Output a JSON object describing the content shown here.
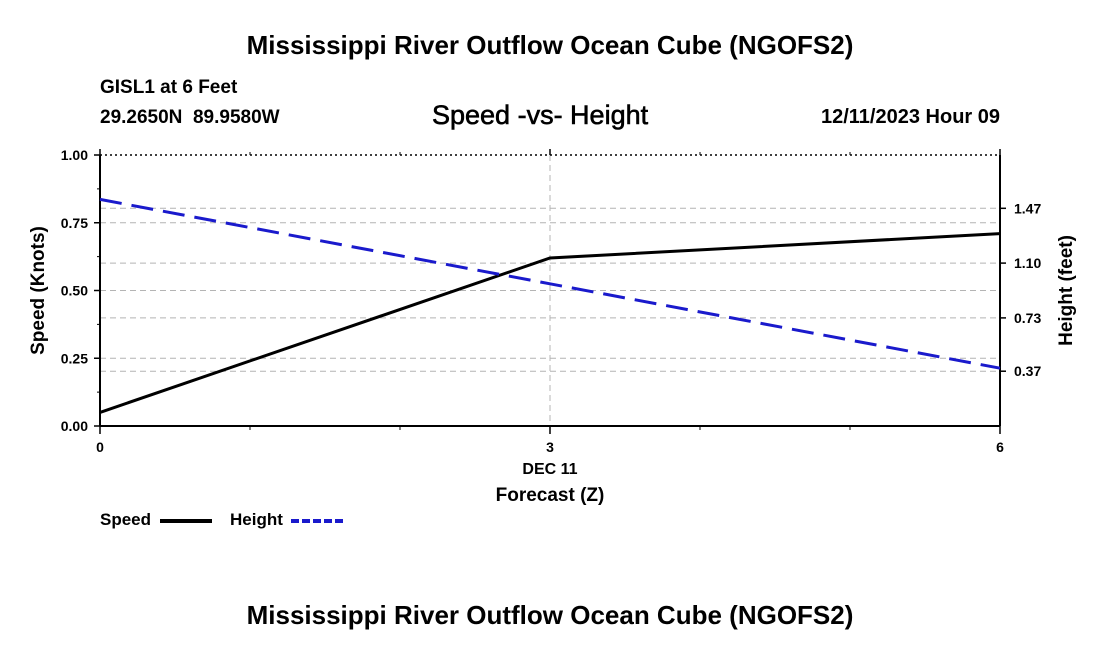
{
  "header": {
    "title": "Mississippi River Outflow Ocean Cube (NGOFS2)",
    "station": "GISL1 at 6 Feet",
    "coords": "29.2650N  89.9580W",
    "subtitle": "Speed -vs- Height",
    "datetime": "12/11/2023 Hour 09"
  },
  "footer": {
    "title": "Mississippi River Outflow Ocean Cube (NGOFS2)"
  },
  "colors": {
    "speed": "#000000",
    "height": "#1a1acc",
    "grid": "#b4b4b4"
  },
  "chart_data": {
    "type": "line",
    "title": "Speed -vs- Height",
    "xlabel": "Forecast (Z)",
    "x_date_label": "DEC 11",
    "ylabel": "Speed (Knots)",
    "y2label": "Height (feet)",
    "x": [
      0,
      3,
      6
    ],
    "xlim": [
      0,
      6
    ],
    "ylim": [
      0,
      1
    ],
    "y2lim": [
      0,
      1.83
    ],
    "x_ticks": [
      "0",
      "3",
      "6"
    ],
    "y_ticks": [
      "0.00",
      "0.25",
      "0.50",
      "0.75",
      "1.00"
    ],
    "y2_ticks": [
      "0.37",
      "0.73",
      "1.10",
      "1.47"
    ],
    "grid": true,
    "legend": [
      "Speed",
      "Height"
    ],
    "series": [
      {
        "name": "Speed",
        "axis": "left",
        "values": [
          0.05,
          0.62,
          0.71
        ],
        "style": "solid"
      },
      {
        "name": "Height",
        "axis": "right",
        "values": [
          1.53,
          0.96,
          0.39
        ],
        "style": "dashed"
      }
    ]
  }
}
